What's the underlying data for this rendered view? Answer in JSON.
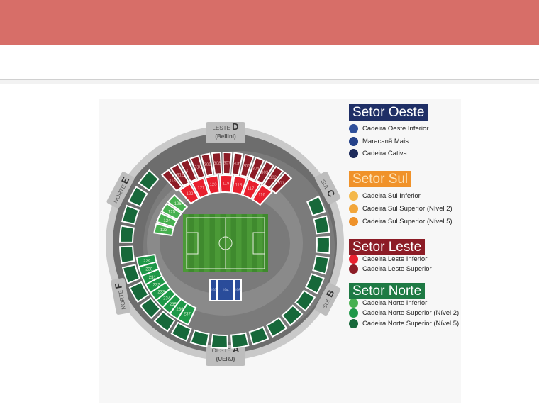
{
  "header": {
    "color": "#d76e68"
  },
  "map": {
    "gates": {
      "leste": {
        "word": "LESTE",
        "letter": "D",
        "sub": "(Bellini)"
      },
      "oeste": {
        "word": "OESTE",
        "letter": "A",
        "sub": "(UERJ)"
      },
      "norte_e": {
        "word": "NORTE",
        "letter": "E"
      },
      "norte_f": {
        "word": "NORTE",
        "letter": "F"
      },
      "sul_c": {
        "word": "SUL",
        "letter": "C"
      },
      "sul_b": {
        "word": "SUL",
        "letter": "B"
      }
    },
    "sections": {
      "leste_superior": [
        "313",
        "312",
        "311",
        "310",
        "309",
        "308",
        "307",
        "306",
        "305",
        "304",
        "303",
        "302",
        "301"
      ],
      "leste_inferior": [
        "122",
        "121",
        "120",
        "119",
        "118",
        "117",
        "116"
      ],
      "norte_inferior": [
        "123",
        "124",
        "125",
        "126"
      ],
      "norte_superior_2": [
        "229",
        "230",
        "231",
        "232",
        "233",
        "234",
        "235",
        "236",
        "237"
      ],
      "oeste_inferior": [
        "103",
        "104",
        "105"
      ]
    }
  },
  "legend": [
    {
      "title": "Setor Oeste",
      "color": "#1f2f66",
      "title_color": "#ffffff",
      "items": [
        {
          "label": "Cadeira Oeste Inferior",
          "color": "#2e4f9a"
        },
        {
          "label": "Maracanã Mais",
          "color": "#25428a"
        },
        {
          "label": "Cadeira Cativa",
          "color": "#1c2a5a"
        }
      ]
    },
    {
      "title": "Setor Sul",
      "color": "#f0922a",
      "title_color": "#fde3b8",
      "items": [
        {
          "label": "Cadeira Sul Inferior",
          "color": "#f4b84a"
        },
        {
          "label": "Cadeira Sul Superior (Nível 2)",
          "color": "#f2a63a"
        },
        {
          "label": "Cadeira Sul Superior (Nível 5)",
          "color": "#ef922a"
        }
      ]
    },
    {
      "title": "Setor Leste",
      "color": "#8c1c26",
      "title_color": "#ffffff",
      "items": [
        {
          "label": "Cadeira Leste Inferior",
          "color": "#e8202e"
        },
        {
          "label": "Cadeira Leste Superior",
          "color": "#8c1c26"
        }
      ]
    },
    {
      "title": "Setor Norte",
      "color": "#1e7a44",
      "title_color": "#ffffff",
      "items": [
        {
          "label": "Cadeira Norte Inferior",
          "color": "#46b050"
        },
        {
          "label": "Cadeira Norte Superior (Nível 2)",
          "color": "#1e9848"
        },
        {
          "label": "Cadeira Norte Superior (Nível 5)",
          "color": "#17683a"
        }
      ]
    }
  ]
}
